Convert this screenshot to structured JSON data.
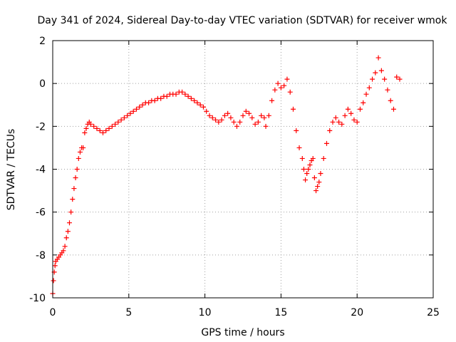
{
  "chart_data": {
    "type": "scatter",
    "title": "Day 341 of 2024, Sidereal Day-to-day VTEC variation (SDTVAR) for receiver wmok",
    "xlabel": "GPS time / hours",
    "ylabel": "SDTVAR / TECUs",
    "xlim": [
      0,
      25
    ],
    "ylim": [
      -10,
      2
    ],
    "xticks": [
      "0",
      "5",
      "10",
      "15",
      "20",
      "25"
    ],
    "yticks": [
      "-10",
      "-8",
      "-6",
      "-4",
      "-2",
      "0",
      "2"
    ],
    "grid": true,
    "marker": "+",
    "color": "#ff0000",
    "series": [
      {
        "name": "wmok",
        "x": [
          0.0,
          0.05,
          0.1,
          0.15,
          0.2,
          0.3,
          0.4,
          0.5,
          0.6,
          0.7,
          0.8,
          0.9,
          1.0,
          1.1,
          1.2,
          1.3,
          1.4,
          1.5,
          1.6,
          1.7,
          1.8,
          1.9,
          2.0,
          2.1,
          2.2,
          2.3,
          2.4,
          2.5,
          2.7,
          2.9,
          3.1,
          3.3,
          3.5,
          3.7,
          3.9,
          4.1,
          4.3,
          4.5,
          4.7,
          4.9,
          5.1,
          5.3,
          5.5,
          5.7,
          5.9,
          6.1,
          6.3,
          6.5,
          6.7,
          6.9,
          7.1,
          7.3,
          7.5,
          7.7,
          7.9,
          8.1,
          8.3,
          8.5,
          8.7,
          8.9,
          9.1,
          9.3,
          9.5,
          9.7,
          9.9,
          10.1,
          10.3,
          10.5,
          10.7,
          10.9,
          11.1,
          11.3,
          11.5,
          11.7,
          11.9,
          12.1,
          12.3,
          12.5,
          12.7,
          12.9,
          13.1,
          13.3,
          13.5,
          13.7,
          13.9,
          14.0,
          14.2,
          14.4,
          14.6,
          14.8,
          15.0,
          15.2,
          15.4,
          15.6,
          15.8,
          16.0,
          16.2,
          16.4,
          16.5,
          16.6,
          16.7,
          16.8,
          16.9,
          17.0,
          17.1,
          17.2,
          17.3,
          17.4,
          17.5,
          17.6,
          17.8,
          18.0,
          18.2,
          18.4,
          18.6,
          18.8,
          19.0,
          19.2,
          19.4,
          19.6,
          19.8,
          20.0,
          20.2,
          20.4,
          20.6,
          20.8,
          21.0,
          21.2,
          21.4,
          21.6,
          21.8,
          22.0,
          22.2,
          22.4,
          22.6,
          22.8
        ],
        "y": [
          -9.8,
          -9.2,
          -8.8,
          -8.5,
          -8.3,
          -8.2,
          -8.1,
          -8.0,
          -7.9,
          -7.8,
          -7.6,
          -7.2,
          -6.9,
          -6.5,
          -6.0,
          -5.4,
          -4.9,
          -4.4,
          -4.0,
          -3.5,
          -3.2,
          -3.0,
          -3.0,
          -2.3,
          -2.1,
          -1.9,
          -1.8,
          -1.9,
          -2.0,
          -2.1,
          -2.2,
          -2.3,
          -2.2,
          -2.1,
          -2.0,
          -1.9,
          -1.8,
          -1.7,
          -1.6,
          -1.5,
          -1.4,
          -1.3,
          -1.2,
          -1.1,
          -1.0,
          -0.9,
          -0.9,
          -0.8,
          -0.8,
          -0.7,
          -0.7,
          -0.6,
          -0.6,
          -0.5,
          -0.5,
          -0.5,
          -0.4,
          -0.4,
          -0.5,
          -0.6,
          -0.7,
          -0.8,
          -0.9,
          -1.0,
          -1.1,
          -1.3,
          -1.5,
          -1.6,
          -1.7,
          -1.8,
          -1.7,
          -1.5,
          -1.4,
          -1.6,
          -1.8,
          -2.0,
          -1.8,
          -1.5,
          -1.3,
          -1.4,
          -1.6,
          -1.9,
          -1.8,
          -1.5,
          -1.6,
          -2.0,
          -1.5,
          -0.8,
          -0.3,
          0.0,
          -0.2,
          -0.1,
          0.2,
          -0.4,
          -1.2,
          -2.2,
          -3.0,
          -3.5,
          -4.0,
          -4.5,
          -4.2,
          -4.0,
          -3.8,
          -3.6,
          -3.5,
          -4.4,
          -5.0,
          -4.8,
          -4.6,
          -4.2,
          -3.5,
          -2.8,
          -2.2,
          -1.8,
          -1.6,
          -1.8,
          -1.9,
          -1.5,
          -1.2,
          -1.4,
          -1.7,
          -1.8,
          -1.2,
          -0.9,
          -0.5,
          -0.2,
          0.2,
          0.5,
          1.2,
          0.6,
          0.2,
          -0.3,
          -0.8,
          -1.2,
          0.3,
          0.2
        ]
      }
    ]
  }
}
